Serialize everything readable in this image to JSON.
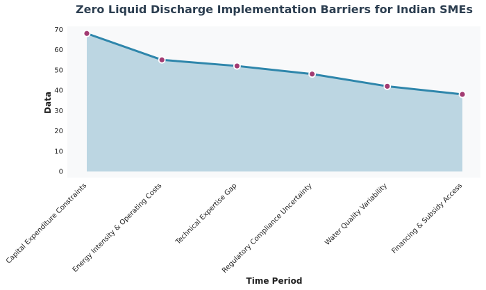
{
  "chart_data": {
    "type": "area",
    "title": "Zero Liquid Discharge Implementation Barriers for Indian SMEs",
    "xlabel": "Time Period",
    "ylabel": "Data",
    "categories": [
      "Capital Expenditure Constraints",
      "Energy Intensity & Operating Costs",
      "Technical Expertise Gap",
      "Regulatory Compliance Uncertainty",
      "Water Quality Variability",
      "Financing & Subsidy Access"
    ],
    "values": [
      68,
      55,
      52,
      48,
      42,
      38
    ],
    "ylim": [
      -3,
      71.5
    ],
    "yticks": [
      "0",
      "10",
      "20",
      "30",
      "40",
      "50",
      "60",
      "70"
    ],
    "grid": false,
    "colors": {
      "line": "#2e86ab",
      "fill": "#bcd6e2",
      "marker": "#a23b72",
      "marker_edge": "#ffffff",
      "plot_bg": "#f8f9fa",
      "title": "#2c3e50"
    }
  }
}
